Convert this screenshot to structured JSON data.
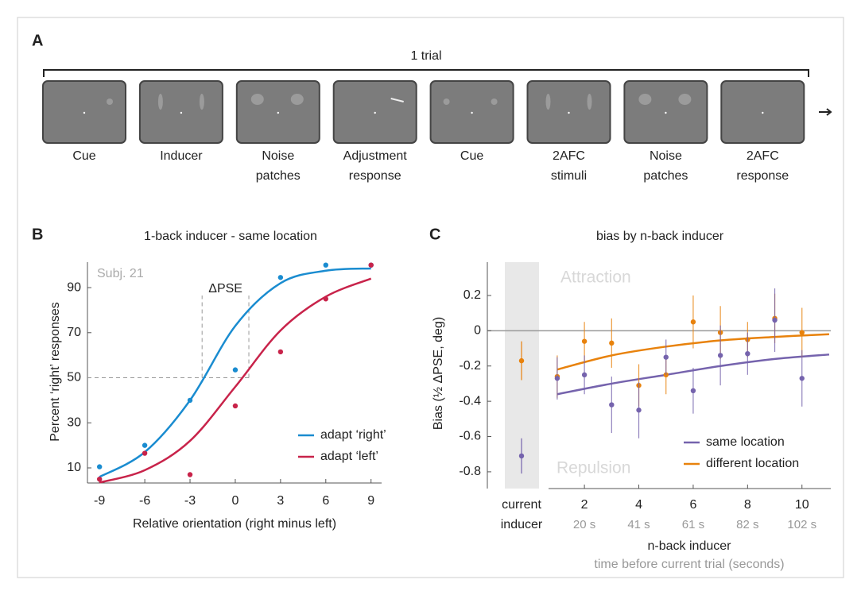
{
  "panel_a": {
    "letter": "A",
    "span_label": "1 trial",
    "frames": [
      {
        "caption": [
          "Cue"
        ]
      },
      {
        "caption": [
          "Inducer"
        ]
      },
      {
        "caption": [
          "Noise",
          "patches"
        ]
      },
      {
        "caption": [
          "Adjustment",
          "response"
        ]
      },
      {
        "caption": [
          "Cue"
        ]
      },
      {
        "caption": [
          "2AFC",
          "stimuli"
        ]
      },
      {
        "caption": [
          "Noise",
          "patches"
        ]
      },
      {
        "caption": [
          "2AFC",
          "response"
        ]
      }
    ]
  },
  "chart_data": [
    {
      "type": "scatter",
      "letter": "B",
      "title": "1-back inducer - same location",
      "annotation": "Subj. 21",
      "pse_label": "ΔPSE",
      "pse_level": 50,
      "pse_x": [
        -2.2,
        0.9
      ],
      "pse_top": 86.5,
      "xlabel": "Relative orientation (right minus left)",
      "ylabel": "Percent ‘right’ responses",
      "x": [
        -9,
        -6,
        -3,
        0,
        3,
        6,
        9
      ],
      "series": [
        {
          "name": "adapt ‘right’",
          "color": "#1a8cd0",
          "values": [
            10.5,
            20,
            40,
            53.5,
            94.5,
            100,
            100
          ],
          "fit": {
            "x": [
              -9,
              -6,
              -3,
              0,
              3,
              6,
              9
            ],
            "values": [
              6,
              17,
              40,
              73,
              92,
              97.5,
              98.5
            ]
          }
        },
        {
          "name": "adapt ‘left’",
          "color": "#c8234a",
          "values": [
            5,
            16.5,
            7,
            37.5,
            61.5,
            85,
            100
          ],
          "fit": {
            "x": [
              -9,
              -6,
              -3,
              0,
              3,
              6,
              9
            ],
            "values": [
              3.5,
              9,
              22,
              46,
              71,
              86,
              94
            ]
          }
        }
      ],
      "xlim": [
        -9.8,
        9.7
      ],
      "ylim": [
        3.3,
        101.3
      ],
      "xticks": [
        -9,
        -6,
        -3,
        0,
        3,
        6,
        9
      ],
      "yticks": [
        10,
        30,
        50,
        70,
        90
      ],
      "legend": "lower right"
    },
    {
      "type": "errorbar",
      "letter": "C",
      "title": "bias by n-back inducer",
      "ylabel": "Bias (½ ΔPSE, deg)",
      "xlabel": "n-back inducer",
      "xlabel_sub": "time before current trial (seconds)",
      "annotations": {
        "top": "Attraction",
        "bottom": "Repulsion"
      },
      "current_label": [
        "current",
        "inducer"
      ],
      "x": [
        1,
        2,
        3,
        4,
        5,
        6,
        7,
        8,
        9,
        10
      ],
      "series": [
        {
          "name": "same location",
          "color": "#7563ad",
          "values": [
            -0.27,
            -0.25,
            -0.42,
            -0.45,
            -0.15,
            -0.34,
            -0.14,
            -0.13,
            0.06,
            -0.27
          ],
          "errors": [
            0.12,
            0.11,
            0.16,
            0.16,
            0.1,
            0.13,
            0.17,
            0.12,
            0.18,
            0.16
          ],
          "current": -0.71,
          "current_error": 0.1,
          "fit": {
            "x": [
              1,
              3,
              5,
              7,
              9,
              11
            ],
            "values": [
              -0.36,
              -0.3,
              -0.25,
              -0.2,
              -0.16,
              -0.135
            ]
          }
        },
        {
          "name": "different location",
          "color": "#e8820c",
          "values": [
            -0.26,
            -0.06,
            -0.07,
            -0.31,
            -0.25,
            0.05,
            -0.01,
            -0.05,
            0.07,
            -0.01
          ],
          "errors": [
            0.12,
            0.11,
            0.14,
            0.12,
            0.11,
            0.15,
            0.15,
            0.1,
            0.14,
            0.14
          ],
          "current": -0.17,
          "current_error": 0.11,
          "fit": {
            "x": [
              1,
              3,
              5,
              7,
              9,
              11
            ],
            "values": [
              -0.22,
              -0.14,
              -0.09,
              -0.055,
              -0.035,
              -0.02
            ]
          }
        }
      ],
      "xlim": [
        -1.57,
        11.06
      ],
      "ylim": [
        -0.895,
        0.389
      ],
      "xticks": [
        2,
        4,
        6,
        8,
        10
      ],
      "xtick_sublabels": [
        "20 s",
        "41 s",
        "61 s",
        "82 s",
        "102 s"
      ],
      "yticks": [
        0.2,
        0,
        -0.2,
        -0.4,
        -0.6,
        -0.8
      ],
      "reference_line": 0,
      "legend": "lower right"
    }
  ]
}
